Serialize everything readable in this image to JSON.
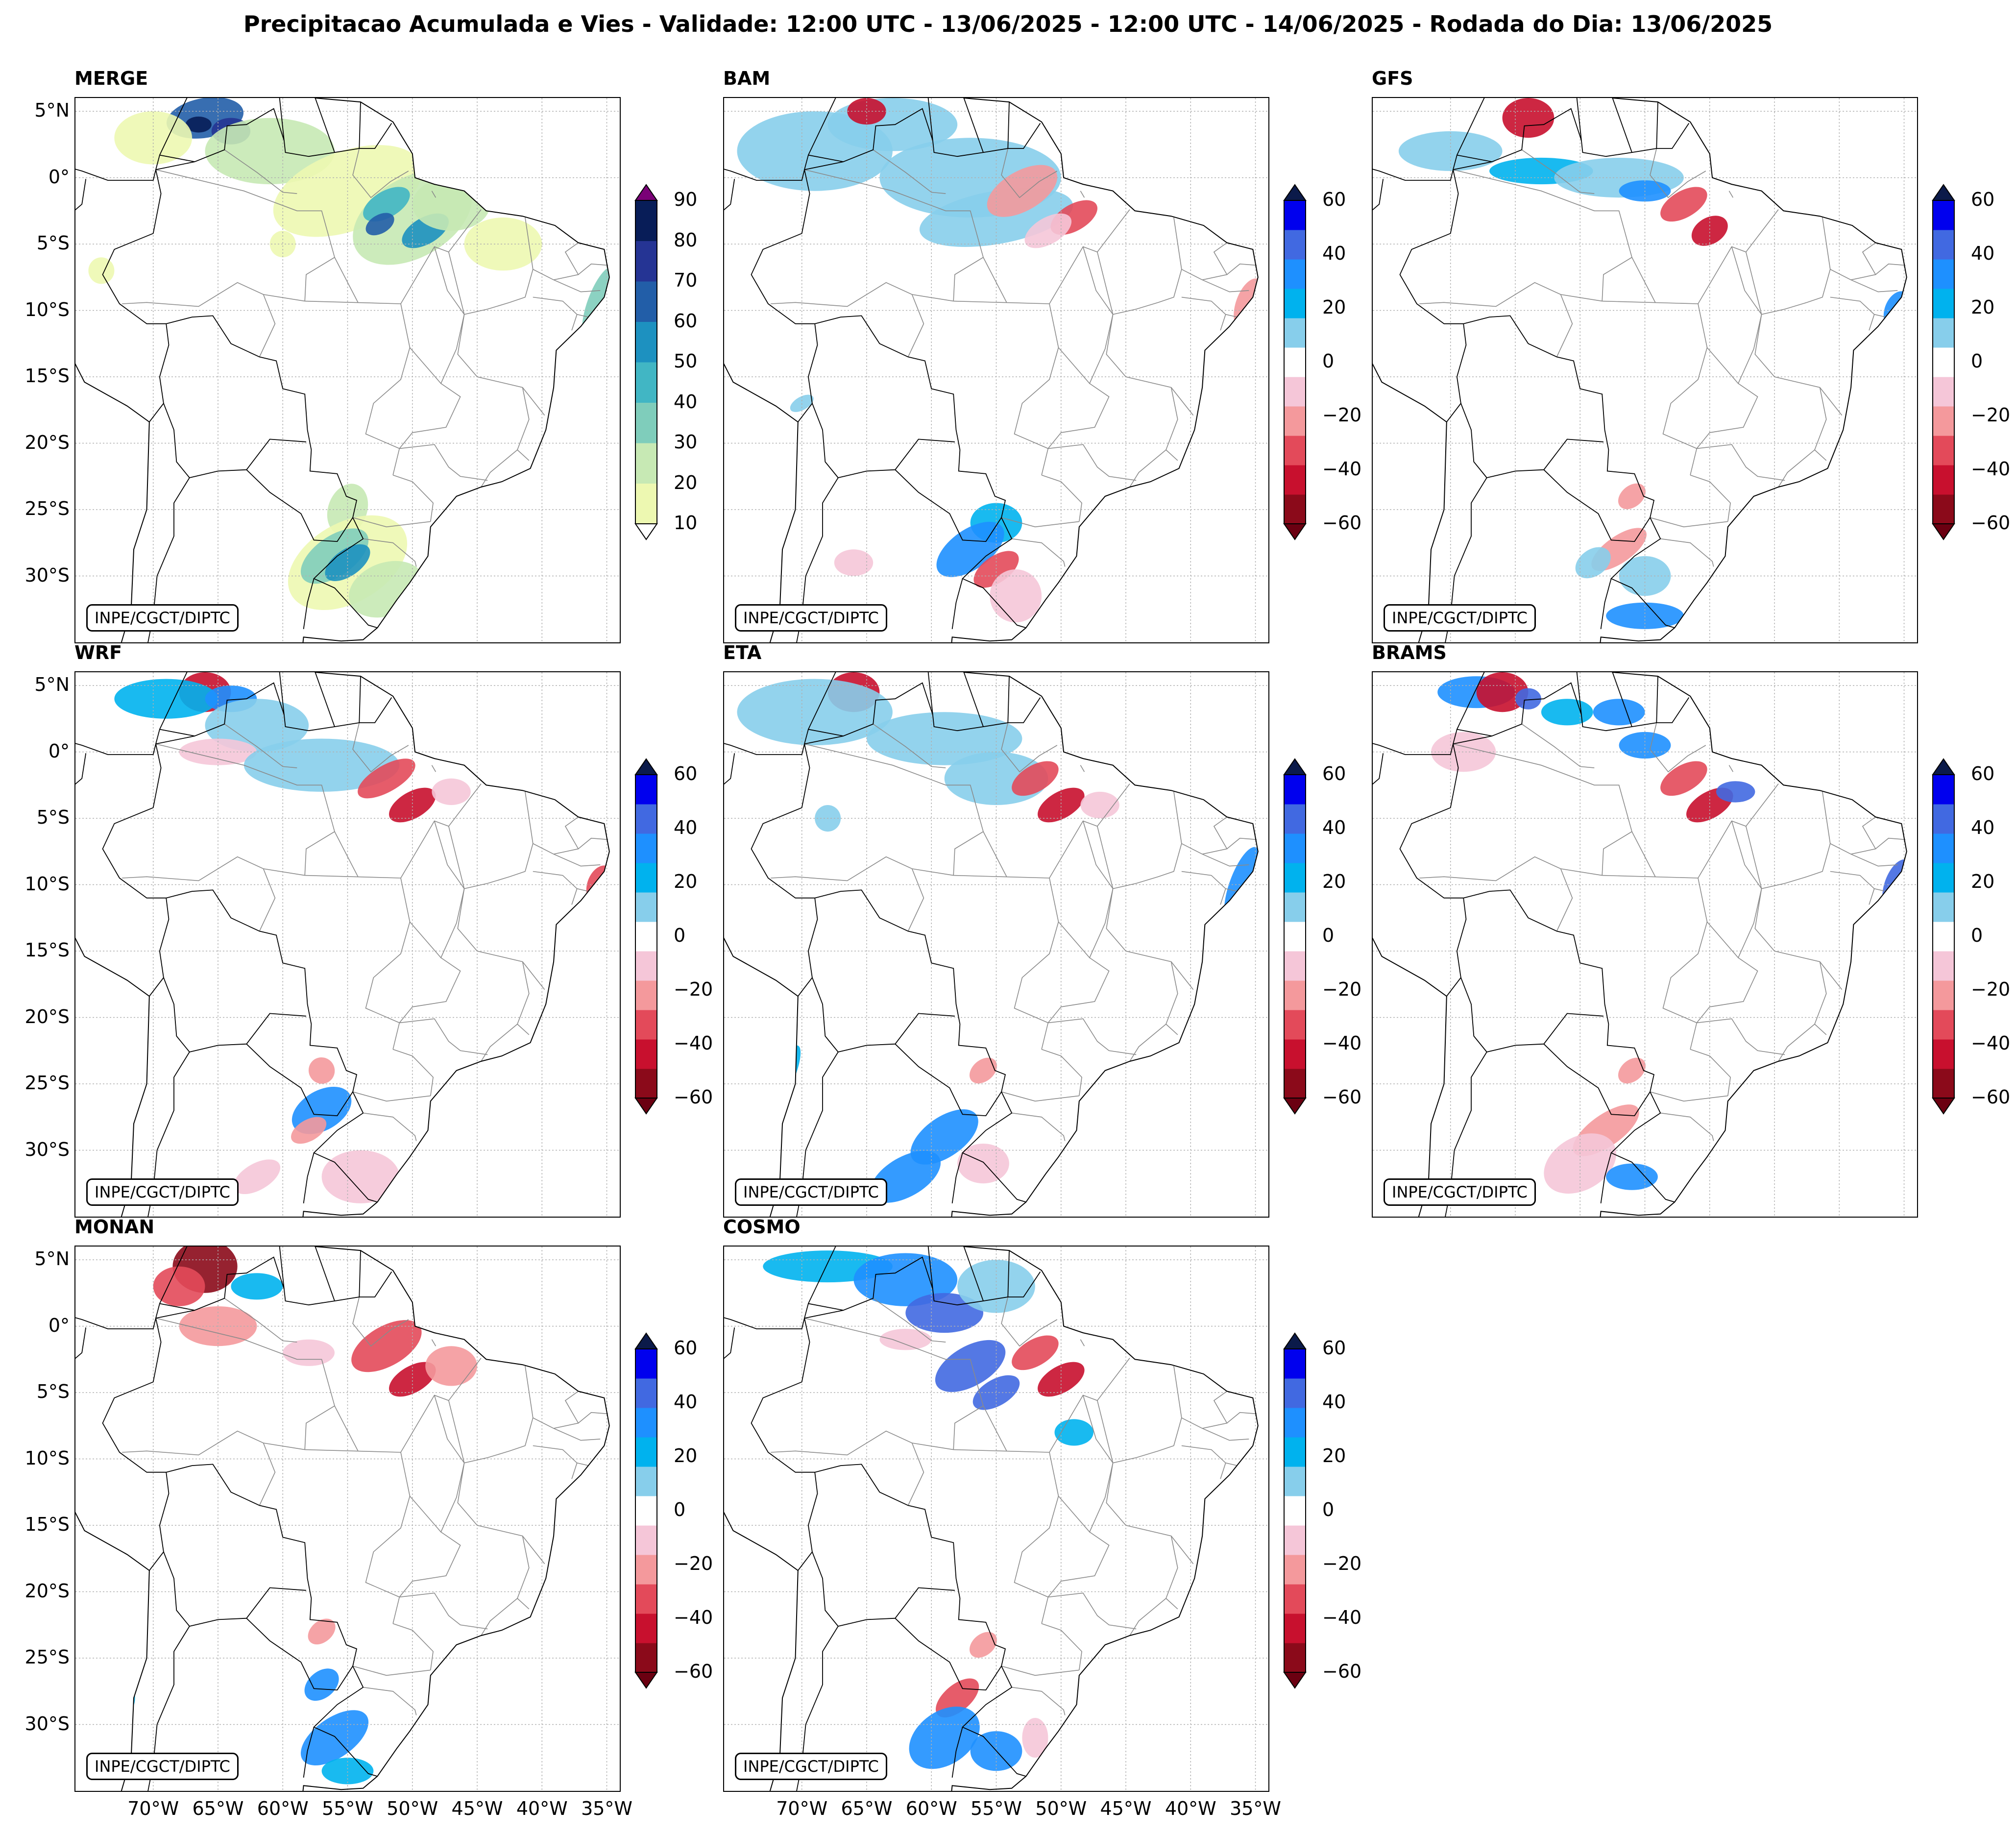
{
  "title": "Precipitacao Acumulada e Vies - Validade: 12:00 UTC - 13/06/2025 - 12:00 UTC - 14/06/2025 - Rodada do Dia: 13/06/2025",
  "credit": "INPE/CGCT/DIPTC",
  "lat_labels": [
    "5°N",
    "0°",
    "5°S",
    "10°S",
    "15°S",
    "20°S",
    "25°S",
    "30°S"
  ],
  "lon_labels": [
    "70°W",
    "65°W",
    "60°W",
    "55°W",
    "50°W",
    "45°W",
    "40°W",
    "35°W"
  ],
  "map_extent": {
    "lon_min": -76,
    "lon_max": -34,
    "lat_min": -35,
    "lat_max": 6
  },
  "colorbars": {
    "precip": {
      "ticks": [
        "90",
        "80",
        "70",
        "60",
        "50",
        "40",
        "30",
        "20",
        "10"
      ],
      "levels": [
        10,
        20,
        30,
        40,
        50,
        60,
        70,
        80,
        90
      ],
      "colors": [
        "#edf8b1",
        "#c7e9b4",
        "#7fcdbb",
        "#41b6c4",
        "#1d91c0",
        "#225ea8",
        "#253494",
        "#081d58"
      ],
      "over_color": "#7a0177",
      "under_color": "#ffffff"
    },
    "bias": {
      "ticks": [
        "60",
        "40",
        "20",
        "0",
        "−20",
        "−40",
        "−60"
      ],
      "levels": [
        -60,
        -50,
        -40,
        -30,
        -20,
        -10,
        10,
        20,
        30,
        40,
        50,
        60
      ],
      "colors": [
        "#8b0a1a",
        "#c8102e",
        "#e34a5a",
        "#f4999c",
        "#f5c6d8",
        "#ffffff",
        "#87ceeb",
        "#00b2ee",
        "#1e90ff",
        "#4169e1",
        "#0000ee"
      ],
      "over_color": "#0b1a4a",
      "under_color": "#6b0011"
    }
  },
  "panels": [
    {
      "name": "MERGE",
      "type": "precip"
    },
    {
      "name": "BAM",
      "type": "bias"
    },
    {
      "name": "GFS",
      "type": "bias"
    },
    {
      "name": "WRF",
      "type": "bias"
    },
    {
      "name": "ETA",
      "type": "bias"
    },
    {
      "name": "BRAMS",
      "type": "bias"
    },
    {
      "name": "MONAN",
      "type": "bias"
    },
    {
      "name": "COSMO",
      "type": "bias"
    }
  ]
}
